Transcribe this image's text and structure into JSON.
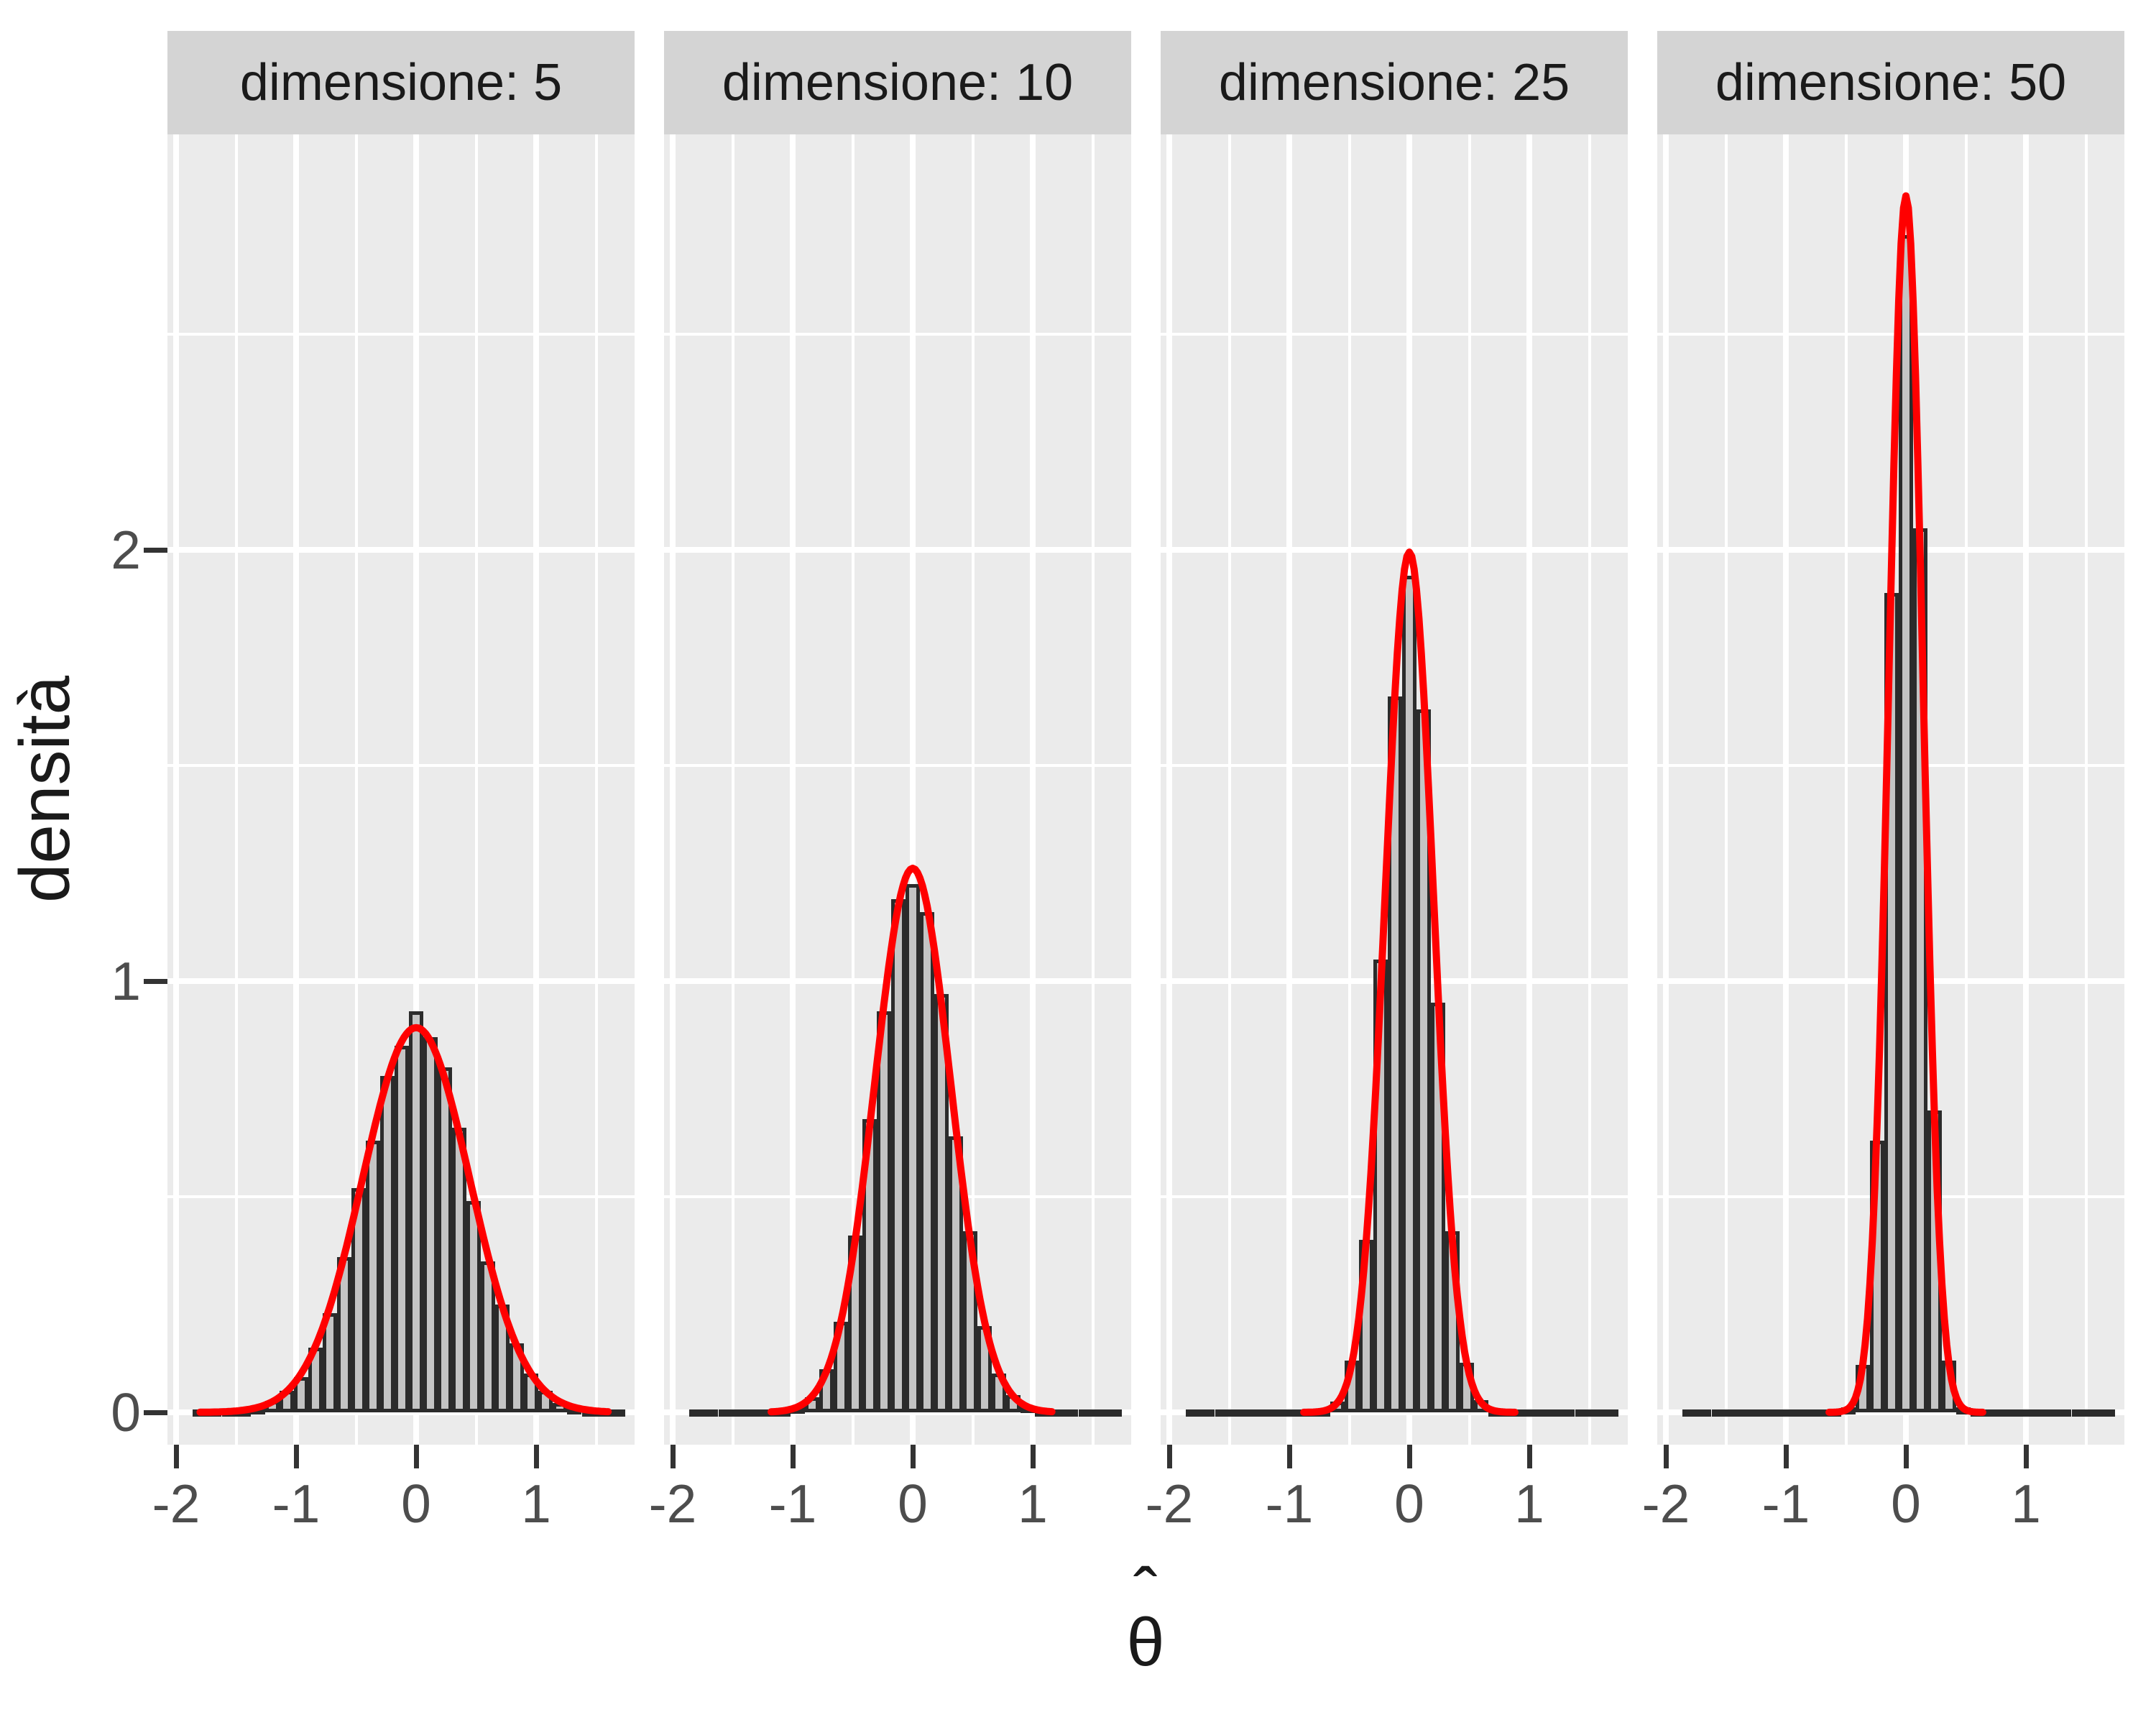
{
  "chart_data": {
    "type": "bar",
    "subtype": "faceted-histogram-with-density-curve",
    "title": "",
    "ylabel": "densità",
    "xlabel_letter": "θ",
    "xlabel_hat": "ˆ",
    "facet_variable": "dimensione",
    "x_ticks": [
      -2,
      -1,
      0,
      1
    ],
    "y_ticks": [
      0,
      1,
      2
    ],
    "x_minor_ticks": [
      -1.5,
      -0.5,
      0.5,
      1.5
    ],
    "y_minor_ticks": [
      0.5,
      1.5,
      2.5
    ],
    "x_range": [
      -2.072,
      1.82
    ],
    "y_range": [
      -0.075,
      2.963
    ],
    "grid": true,
    "legend": false,
    "bin_width": 0.12,
    "bin_centers": [
      -1.8,
      -1.68,
      -1.56,
      -1.44,
      -1.32,
      -1.2,
      -1.08,
      -0.96,
      -0.84,
      -0.72,
      -0.6,
      -0.48,
      -0.36,
      -0.24,
      -0.12,
      0.0,
      0.12,
      0.24,
      0.36,
      0.48,
      0.6,
      0.72,
      0.84,
      0.96,
      1.08,
      1.2,
      1.32,
      1.44,
      1.56,
      1.68
    ],
    "facets": [
      {
        "label": "dimensione: 5",
        "sample_size": 5,
        "curve_sd": 0.4472,
        "curve_peak": 0.892,
        "curve_range": [
          -1.8,
          1.6
        ],
        "bar_heights": [
          0.002,
          0.003,
          0.004,
          0.006,
          0.012,
          0.027,
          0.05,
          0.082,
          0.15,
          0.23,
          0.36,
          0.52,
          0.63,
          0.78,
          0.85,
          0.93,
          0.87,
          0.8,
          0.66,
          0.49,
          0.35,
          0.25,
          0.16,
          0.09,
          0.05,
          0.022,
          0.012,
          0.006,
          0.004,
          0.002
        ]
      },
      {
        "label": "dimensione: 10",
        "sample_size": 10,
        "curve_sd": 0.3162,
        "curve_peak": 1.2616,
        "curve_range": [
          -1.18,
          1.17
        ],
        "bar_heights": [
          0.002,
          0.002,
          0.002,
          0.002,
          0.003,
          0.003,
          0.005,
          0.013,
          0.035,
          0.1,
          0.21,
          0.41,
          0.68,
          0.93,
          1.19,
          1.225,
          1.16,
          0.97,
          0.64,
          0.42,
          0.2,
          0.09,
          0.04,
          0.015,
          0.005,
          0.003,
          0.002,
          0.002,
          0.002,
          0.002
        ]
      },
      {
        "label": "dimensione: 25",
        "sample_size": 25,
        "curve_sd": 0.2,
        "curve_peak": 1.9947,
        "curve_range": [
          -0.88,
          0.88
        ],
        "bar_heights": [
          0.002,
          0.002,
          0.002,
          0.002,
          0.002,
          0.002,
          0.002,
          0.002,
          0.003,
          0.006,
          0.025,
          0.12,
          0.4,
          1.05,
          1.66,
          1.94,
          1.63,
          0.95,
          0.42,
          0.115,
          0.028,
          0.006,
          0.003,
          0.002,
          0.002,
          0.002,
          0.002,
          0.002,
          0.002,
          0.002
        ]
      },
      {
        "label": "dimensione: 50",
        "sample_size": 50,
        "curve_sd": 0.1414,
        "curve_peak": 2.8209,
        "curve_range": [
          -0.64,
          0.64
        ],
        "bar_heights": [
          0.002,
          0.002,
          0.002,
          0.002,
          0.002,
          0.002,
          0.002,
          0.002,
          0.002,
          0.002,
          0.004,
          0.012,
          0.11,
          0.63,
          1.9,
          2.73,
          2.05,
          0.7,
          0.12,
          0.012,
          0.004,
          0.002,
          0.002,
          0.002,
          0.002,
          0.002,
          0.002,
          0.002,
          0.002,
          0.002
        ]
      }
    ]
  },
  "style": {
    "background": "#FFFFFF",
    "panel_bg": "#EBEBEB",
    "strip_bg": "#D4D4D4",
    "grid_color": "#FFFFFF",
    "bar_fill": "#C4C4C4",
    "bar_border": "#2B2B2B",
    "curve_color": "#FF0000",
    "tick_color": "#333333",
    "tick_label_color": "#4D4D4D",
    "title_color": "#1A1A1A"
  }
}
